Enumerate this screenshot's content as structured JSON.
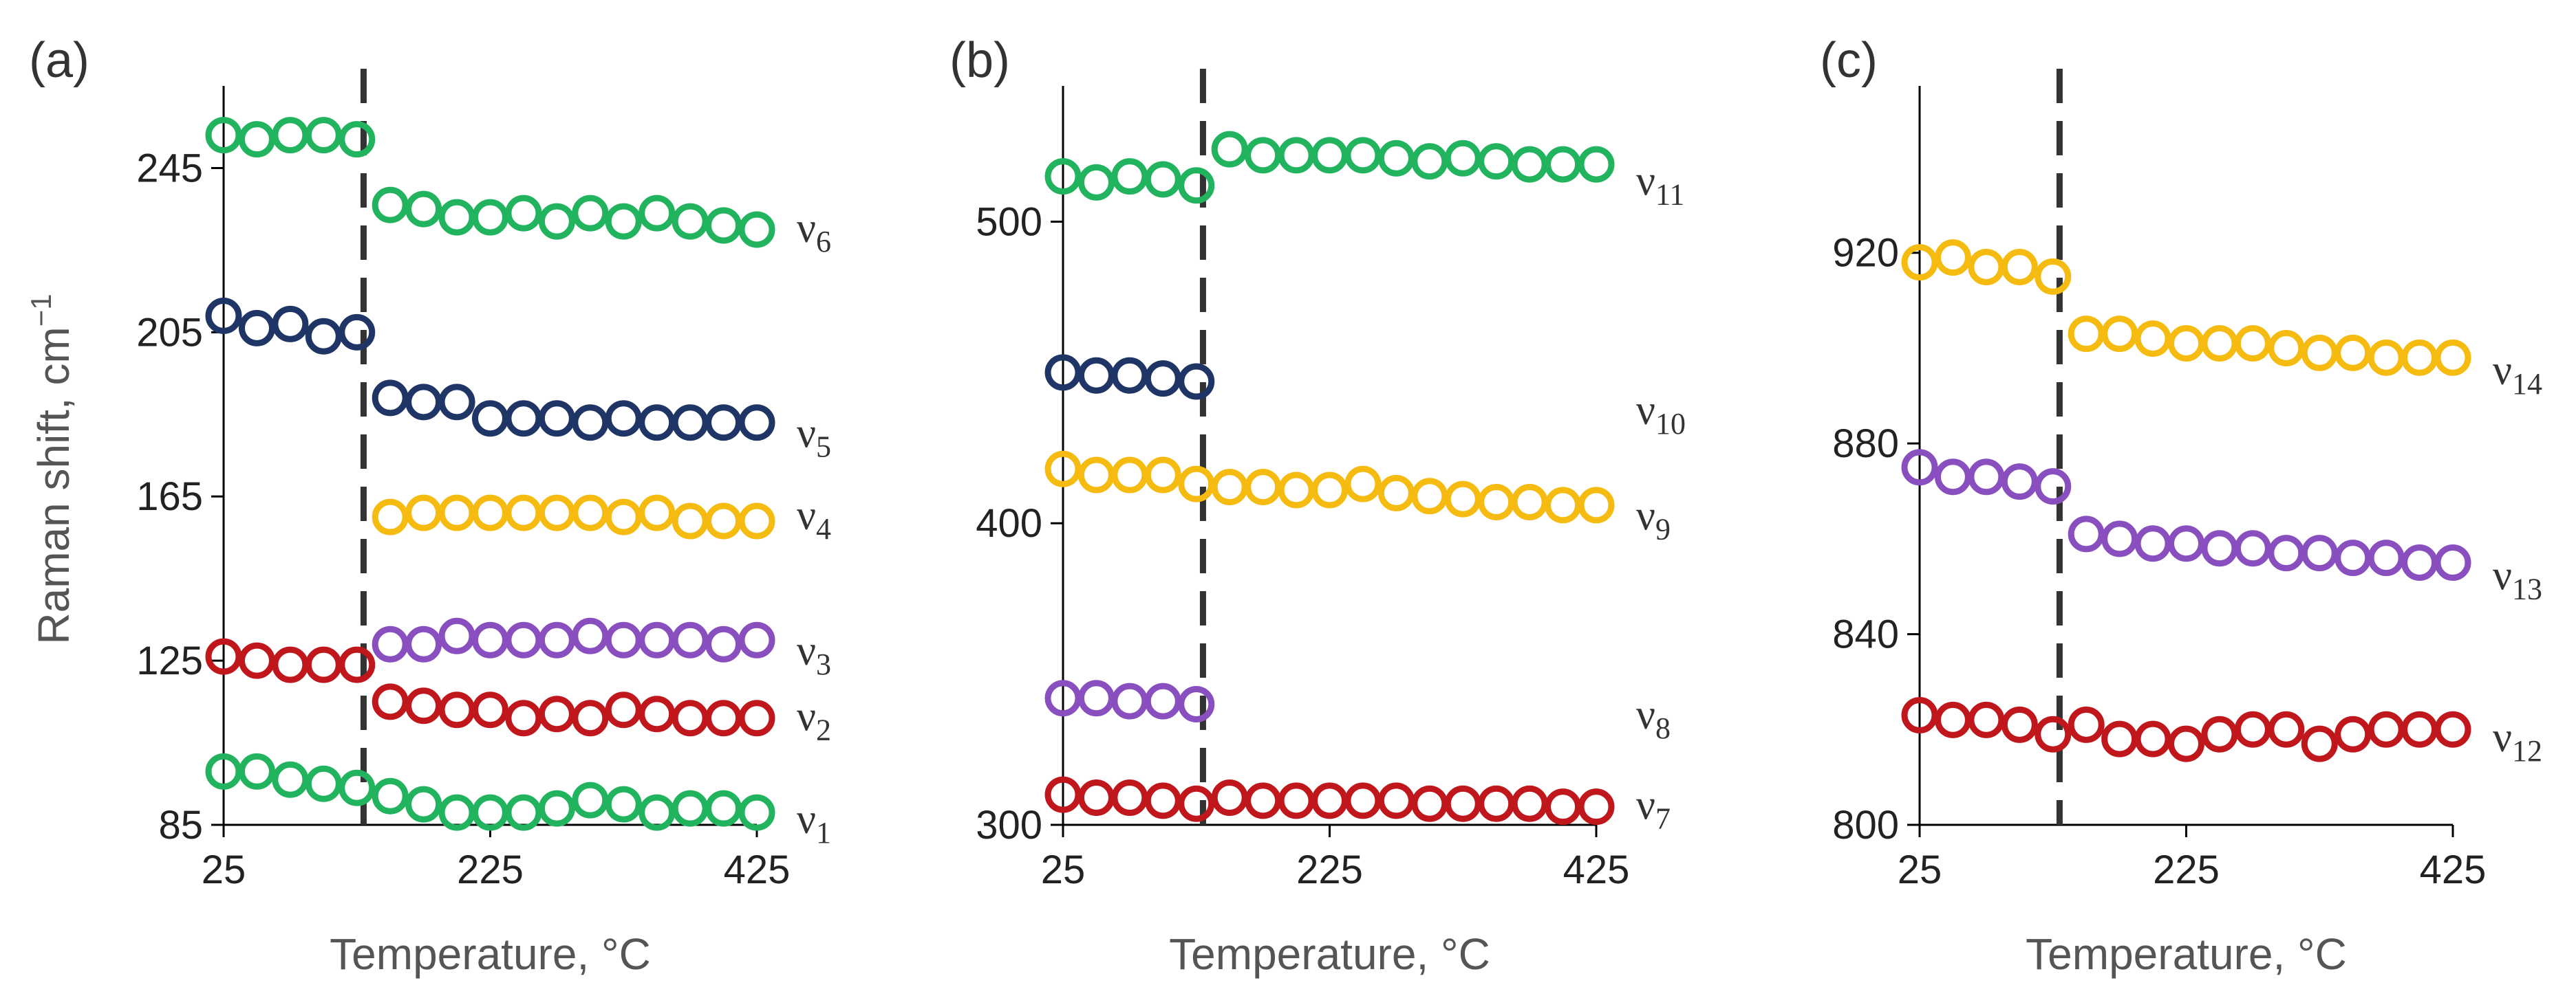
{
  "colors": {
    "green": "#22b35e",
    "navy": "#1f3566",
    "yellow": "#f5bb10",
    "purple": "#8a4fbf",
    "red": "#c0171c"
  },
  "common": {
    "xlabel": "Temperature, °C",
    "ylabel_main": "Raman shift, cm",
    "ylabel_sup": "−1",
    "xticks": [
      25,
      225,
      425
    ],
    "xlim": [
      25,
      425
    ],
    "transition_x": 130
  },
  "chart_data": [
    {
      "type": "scatter",
      "panel": "(a)",
      "ylim": [
        85,
        265
      ],
      "yticks": [
        85,
        125,
        165,
        205,
        245
      ],
      "xlabel": "Temperature, °C",
      "ylabel": "Raman shift, cm−1",
      "series": [
        {
          "sym": "ν",
          "sub": "6",
          "color": "green",
          "label_y": 230,
          "x": [
            25,
            50,
            75,
            100,
            125,
            150,
            175,
            200,
            225,
            250,
            275,
            300,
            325,
            350,
            375,
            400,
            425
          ],
          "y": [
            253,
            252,
            253,
            253,
            252,
            236,
            235,
            233,
            233,
            234,
            232,
            234,
            232,
            234,
            232,
            231,
            230
          ]
        },
        {
          "sym": "ν",
          "sub": "5",
          "color": "navy",
          "label_y": 180,
          "x": [
            25,
            50,
            75,
            100,
            125,
            150,
            175,
            200,
            225,
            250,
            275,
            300,
            325,
            350,
            375,
            400,
            425
          ],
          "y": [
            209,
            206,
            207,
            204,
            205,
            189,
            188,
            188,
            184,
            184,
            184,
            183,
            184,
            183,
            183,
            183,
            183
          ]
        },
        {
          "sym": "ν",
          "sub": "4",
          "color": "yellow",
          "label_y": 160,
          "x": [
            150,
            175,
            200,
            225,
            250,
            275,
            300,
            325,
            350,
            375,
            400,
            425
          ],
          "y": [
            160,
            161,
            161,
            161,
            161,
            161,
            161,
            160,
            161,
            159,
            159,
            159
          ]
        },
        {
          "sym": "ν",
          "sub": "3",
          "color": "purple",
          "label_y": 127,
          "x": [
            150,
            175,
            200,
            225,
            250,
            275,
            300,
            325,
            350,
            375,
            400,
            425
          ],
          "y": [
            129,
            129,
            131,
            130,
            130,
            130,
            131,
            130,
            130,
            130,
            129,
            130
          ]
        },
        {
          "sym": "ν",
          "sub": "2",
          "color": "red",
          "label_y": 111,
          "x": [
            25,
            50,
            75,
            100,
            125,
            150,
            175,
            200,
            225,
            250,
            275,
            300,
            325,
            350,
            375,
            400,
            425
          ],
          "y": [
            126,
            125,
            124,
            124,
            124,
            115,
            114,
            113,
            113,
            111,
            112,
            111,
            113,
            112,
            111,
            111,
            111
          ]
        },
        {
          "sym": "ν",
          "sub": "1",
          "color": "green",
          "label_y": 86,
          "x": [
            25,
            50,
            75,
            100,
            125,
            150,
            175,
            200,
            225,
            250,
            275,
            300,
            325,
            350,
            375,
            400,
            425
          ],
          "y": [
            98,
            98,
            96,
            95,
            94,
            92,
            90,
            88,
            88,
            88,
            89,
            91,
            90,
            88,
            89,
            89,
            88
          ]
        }
      ]
    },
    {
      "type": "scatter",
      "panel": "(b)",
      "ylim": [
        300,
        545
      ],
      "yticks": [
        300,
        400,
        500
      ],
      "xlabel": "Temperature, °C",
      "ylabel": "",
      "series": [
        {
          "sym": "ν",
          "sub": "11",
          "color": "green",
          "label_y": 513,
          "x": [
            25,
            50,
            75,
            100,
            125,
            150,
            175,
            200,
            225,
            250,
            275,
            300,
            325,
            350,
            375,
            400,
            425
          ],
          "y": [
            515,
            513,
            515,
            514,
            512,
            524,
            522,
            522,
            522,
            522,
            521,
            520,
            521,
            520,
            519,
            519,
            519
          ]
        },
        {
          "sym": "ν",
          "sub": "10",
          "color": "navy",
          "label_y": 437,
          "x": [
            25,
            50,
            75,
            100,
            125
          ],
          "y": [
            450,
            449,
            449,
            448,
            447
          ]
        },
        {
          "sym": "ν",
          "sub": "9",
          "color": "yellow",
          "label_y": 402,
          "x": [
            25,
            50,
            75,
            100,
            125,
            150,
            175,
            200,
            225,
            250,
            275,
            300,
            325,
            350,
            375,
            400,
            425
          ],
          "y": [
            418,
            416,
            416,
            416,
            413,
            412,
            412,
            411,
            411,
            413,
            410,
            409,
            408,
            407,
            407,
            406,
            406
          ]
        },
        {
          "sym": "ν",
          "sub": "8",
          "color": "purple",
          "label_y": 336,
          "x": [
            25,
            50,
            75,
            100,
            125
          ],
          "y": [
            342,
            342,
            341,
            341,
            340
          ]
        },
        {
          "sym": "ν",
          "sub": "7",
          "color": "red",
          "label_y": 306,
          "x": [
            25,
            50,
            75,
            100,
            125,
            150,
            175,
            200,
            225,
            250,
            275,
            300,
            325,
            350,
            375,
            400,
            425
          ],
          "y": [
            310,
            309,
            309,
            308,
            307,
            309,
            308,
            308,
            308,
            308,
            308,
            307,
            307,
            307,
            307,
            306,
            306
          ]
        }
      ]
    },
    {
      "type": "scatter",
      "panel": "(c)",
      "ylim": [
        800,
        955
      ],
      "yticks": [
        800,
        840,
        880,
        920
      ],
      "xlabel": "Temperature, °C",
      "ylabel": "",
      "series": [
        {
          "sym": "ν",
          "sub": "14",
          "color": "yellow",
          "label_y": 895,
          "x": [
            25,
            50,
            75,
            100,
            125,
            150,
            175,
            200,
            225,
            250,
            275,
            300,
            325,
            350,
            375,
            400,
            425
          ],
          "y": [
            918,
            919,
            917,
            917,
            915,
            903,
            903,
            902,
            901,
            901,
            901,
            900,
            899,
            899,
            898,
            898,
            898
          ]
        },
        {
          "sym": "ν",
          "sub": "13",
          "color": "purple",
          "label_y": 852,
          "x": [
            25,
            50,
            75,
            100,
            125,
            150,
            175,
            200,
            225,
            250,
            275,
            300,
            325,
            350,
            375,
            400,
            425
          ],
          "y": [
            875,
            873,
            873,
            872,
            871,
            861,
            860,
            859,
            859,
            858,
            858,
            857,
            857,
            856,
            856,
            855,
            855
          ]
        },
        {
          "sym": "ν",
          "sub": "12",
          "color": "red",
          "label_y": 818,
          "x": [
            25,
            50,
            75,
            100,
            125,
            150,
            175,
            200,
            225,
            250,
            275,
            300,
            325,
            350,
            375,
            400,
            425
          ],
          "y": [
            823,
            822,
            822,
            821,
            819,
            821,
            818,
            818,
            817,
            819,
            820,
            820,
            817,
            819,
            820,
            820,
            820
          ]
        }
      ]
    }
  ]
}
